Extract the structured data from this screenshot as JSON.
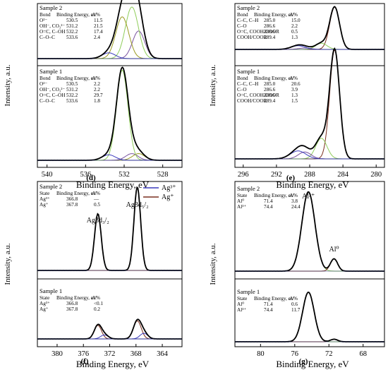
{
  "figure": {
    "colors": {
      "envelope": "#000000",
      "raw": "#1f2a6b",
      "peak_green": "#8fcd5a",
      "peak_olive": "#9a9a22",
      "peak_purple": "#7a54a0",
      "peak_brown": "#7a2e1e",
      "peak_orange": "#e07a20",
      "peak_blue": "#3b3bbd"
    }
  },
  "chart_data": [
    {
      "panel": "(d)",
      "type": "line",
      "xlabel": "Binding Energy, eV",
      "ylabel": "Intensity, a.u.",
      "xlim": [
        541,
        526
      ],
      "x_reversed": true,
      "xticks": [
        "540",
        "536",
        "532",
        "528"
      ],
      "table_header": [
        "Bond",
        "Binding Energy, eV",
        "at.%"
      ],
      "samples": [
        {
          "label": "Sample 2",
          "rows": [
            {
              "bond": "O²⁻",
              "be": "530.5",
              "at": "11.5"
            },
            {
              "bond": "OH⁻, CO₃²⁻",
              "be": "531.2",
              "at": "21.5"
            },
            {
              "bond": "O=C, C–OH",
              "be": "532.2",
              "at": "17.4"
            },
            {
              "bond": "C–O–C",
              "be": "533.6",
              "at": "2.4"
            }
          ],
          "peaks": [
            {
              "center": 530.5,
              "amp": 11.5,
              "fwhm": 1.5,
              "color": "peak_purple"
            },
            {
              "center": 531.2,
              "amp": 21.5,
              "fwhm": 1.6,
              "color": "peak_green"
            },
            {
              "center": 532.2,
              "amp": 17.4,
              "fwhm": 1.6,
              "color": "peak_olive"
            },
            {
              "center": 533.6,
              "amp": 2.4,
              "fwhm": 1.6,
              "color": "peak_blue"
            }
          ]
        },
        {
          "label": "Sample 1",
          "rows": [
            {
              "bond": "O²⁻",
              "be": "530.5",
              "at": "2.2"
            },
            {
              "bond": "OH⁻, CO₃²⁻",
              "be": "531.2",
              "at": "2.2"
            },
            {
              "bond": "O=C, C–OH",
              "be": "532.2",
              "at": "29.7"
            },
            {
              "bond": "C–O–C",
              "be": "533.6",
              "at": "1.8"
            }
          ],
          "peaks": [
            {
              "center": 530.5,
              "amp": 2.2,
              "fwhm": 1.5,
              "color": "peak_olive"
            },
            {
              "center": 531.2,
              "amp": 2.2,
              "fwhm": 1.5,
              "color": "peak_purple"
            },
            {
              "center": 532.2,
              "amp": 29.7,
              "fwhm": 1.4,
              "color": "peak_green"
            },
            {
              "center": 533.6,
              "amp": 1.8,
              "fwhm": 1.6,
              "color": "peak_blue"
            }
          ]
        }
      ]
    },
    {
      "panel": "(e)",
      "type": "line",
      "xlabel": "Binding Energy, eV",
      "ylabel": "Intensity, a.u.",
      "xlim": [
        297,
        279
      ],
      "x_reversed": true,
      "xticks": [
        "296",
        "292",
        "288",
        "284",
        "280"
      ],
      "table_header": [
        "Bond",
        "Binding Energy, eV",
        "at.%"
      ],
      "samples": [
        {
          "label": "Sample 2",
          "rows": [
            {
              "bond": "C–C, C–H",
              "be": "285.0",
              "at": "15.0"
            },
            {
              "bond": "C–O",
              "be": "286.6",
              "at": "2.2"
            },
            {
              "bond": "O=C, COOH/COOR",
              "be": "288.6",
              "at": "0.5"
            },
            {
              "bond": "COOH/COOR",
              "be": "289.4",
              "at": "1.3"
            }
          ],
          "peaks": [
            {
              "center": 285.0,
              "amp": 15.0,
              "fwhm": 1.4,
              "color": "peak_brown"
            },
            {
              "center": 286.6,
              "amp": 2.2,
              "fwhm": 1.6,
              "color": "peak_green"
            },
            {
              "center": 288.6,
              "amp": 0.5,
              "fwhm": 1.8,
              "color": "peak_purple"
            },
            {
              "center": 289.4,
              "amp": 1.3,
              "fwhm": 2.0,
              "color": "peak_blue"
            }
          ]
        },
        {
          "label": "Sample 1",
          "rows": [
            {
              "bond": "C–C, C–H",
              "be": "285.0",
              "at": "20.6"
            },
            {
              "bond": "C–O",
              "be": "286.6",
              "at": "3.9"
            },
            {
              "bond": "O=C, COOH/COOR",
              "be": "288.6",
              "at": "1.3"
            },
            {
              "bond": "COOH/COOR",
              "be": "289.4",
              "at": "1.5"
            }
          ],
          "peaks": [
            {
              "center": 285.0,
              "amp": 20.6,
              "fwhm": 1.4,
              "color": "peak_brown"
            },
            {
              "center": 286.6,
              "amp": 3.9,
              "fwhm": 1.6,
              "color": "peak_green"
            },
            {
              "center": 288.6,
              "amp": 1.3,
              "fwhm": 1.8,
              "color": "peak_purple"
            },
            {
              "center": 289.4,
              "amp": 1.5,
              "fwhm": 2.2,
              "color": "peak_blue"
            }
          ]
        }
      ]
    },
    {
      "panel": "(f)",
      "type": "line",
      "xlabel": "Binding Energy, eV",
      "ylabel": "Intensity, a.u.",
      "xlim": [
        383,
        361
      ],
      "x_reversed": true,
      "xticks": [
        "380",
        "376",
        "372",
        "368",
        "364"
      ],
      "table_header": [
        "State",
        "Binding Energy, eV",
        "at.%"
      ],
      "legend": [
        {
          "name": "Ag³⁺",
          "color": "peak_blue"
        },
        {
          "name": "Ag⁺",
          "color": "peak_brown"
        }
      ],
      "annotations": [
        {
          "text": "Ag3d₅/₂",
          "x": 367.8
        },
        {
          "text": "Ag3d₃/₂",
          "x": 373.8
        }
      ],
      "samples": [
        {
          "label": "Sample 2",
          "rows": [
            {
              "bond": "Ag³⁺",
              "be": "366.8",
              "at": "—"
            },
            {
              "bond": "Ag⁺",
              "be": "367.8",
              "at": "0.5"
            }
          ],
          "peaks": [
            {
              "center": 367.8,
              "amp": 10,
              "fwhm": 1.2,
              "color": "peak_brown"
            },
            {
              "center": 373.8,
              "amp": 6.8,
              "fwhm": 1.2,
              "color": "peak_brown"
            }
          ]
        },
        {
          "label": "Sample 1",
          "rows": [
            {
              "bond": "Ag³⁺",
              "be": "366.8",
              "at": "<0.1"
            },
            {
              "bond": "Ag⁺",
              "be": "367.8",
              "at": "0.2"
            }
          ],
          "peaks": [
            {
              "center": 367.8,
              "amp": 1.6,
              "fwhm": 1.4,
              "color": "peak_brown"
            },
            {
              "center": 373.8,
              "amp": 1.2,
              "fwhm": 1.3,
              "color": "peak_brown"
            },
            {
              "center": 366.8,
              "amp": 0.5,
              "fwhm": 1.4,
              "color": "peak_blue"
            },
            {
              "center": 372.8,
              "amp": 0.35,
              "fwhm": 1.4,
              "color": "peak_blue"
            }
          ]
        }
      ]
    },
    {
      "panel": "(g)",
      "type": "line",
      "xlabel": "Binding Energy, eV",
      "ylabel": "Intensity, a.u.",
      "xlim": [
        83,
        65.5
      ],
      "x_reversed": true,
      "xticks": [
        "80",
        "76",
        "72",
        "68"
      ],
      "table_header": [
        "State",
        "Binding Energy, eV",
        "at.%"
      ],
      "annotations": [
        {
          "text": "Al³⁺",
          "x": 74.4
        },
        {
          "text": "Al⁰",
          "x": 71.4
        }
      ],
      "samples": [
        {
          "label": "Sample 2",
          "rows": [
            {
              "bond": "Al⁰",
              "be": "71.4",
              "at": "3.8"
            },
            {
              "bond": "Al³⁺",
              "be": "74.4",
              "at": "24.4"
            }
          ],
          "peaks": [
            {
              "center": 74.4,
              "amp": 24.4,
              "fwhm": 1.8,
              "color": "peak_green"
            },
            {
              "center": 71.4,
              "amp": 3.8,
              "fwhm": 1.0,
              "color": "peak_brown"
            }
          ]
        },
        {
          "label": "Sample 1",
          "rows": [
            {
              "bond": "Al⁰",
              "be": "71.4",
              "at": "0.6"
            },
            {
              "bond": "Al³⁺",
              "be": "74.4",
              "at": "11.7"
            }
          ],
          "peaks": [
            {
              "center": 74.4,
              "amp": 11.7,
              "fwhm": 1.6,
              "color": "peak_green"
            },
            {
              "center": 71.4,
              "amp": 0.6,
              "fwhm": 1.0,
              "color": "peak_brown"
            }
          ]
        }
      ]
    }
  ]
}
